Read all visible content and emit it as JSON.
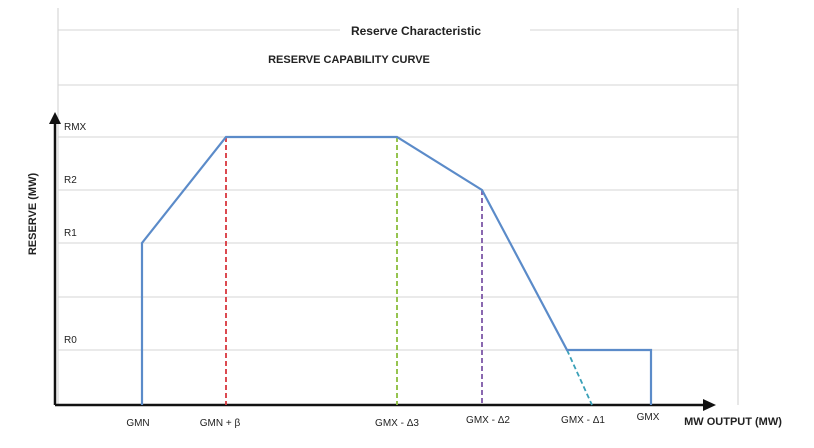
{
  "chart_data": {
    "type": "line",
    "title": "Reserve Characteristic",
    "subtitle": "RESERVE CAPABILITY CURVE",
    "xlabel": "MW OUTPUT (MW)",
    "ylabel": "RESERVE (MW)",
    "x_categories": [
      "GMN",
      "GMN + β",
      "GMX - Δ3",
      "GMX - Δ2",
      "GMX - Δ1",
      "GMX"
    ],
    "y_categories": [
      "R0",
      "R1",
      "R2",
      "RMX"
    ],
    "grid": true,
    "series": [
      {
        "points": [
          {
            "x": "GMN",
            "y": 0
          },
          {
            "x": "GMN",
            "y": "R1"
          },
          {
            "x": "GMN + β",
            "y": "RMX"
          },
          {
            "x": "GMX - Δ3",
            "y": "RMX"
          },
          {
            "x": "GMX - Δ2",
            "y": "R2"
          },
          {
            "x": "between GMX - Δ2 and GMX - Δ1",
            "y": "R0"
          },
          {
            "x": "GMX",
            "y": "R0"
          },
          {
            "x": "GMX",
            "y": 0
          }
        ]
      }
    ],
    "guide_lines": [
      {
        "x": "GMN + β",
        "y": "RMX",
        "style": "dashed",
        "color": "#d9363e"
      },
      {
        "x": "GMX - Δ3",
        "y": "RMX",
        "style": "dashed",
        "color": "#8bbd3c"
      },
      {
        "x": "GMX - Δ2",
        "y": "R2",
        "style": "dashed",
        "color": "#7e57a8"
      },
      {
        "x": "GMX - Δ1",
        "y": "R0",
        "style": "dashed",
        "color": "#3aa0b8"
      },
      {
        "x": "GMX",
        "y": "R0",
        "style": "dashed",
        "color": "#ea8a2e"
      }
    ],
    "colors": {
      "curve": "#5b8bc9",
      "axis": "#111111",
      "grid": "#d4d4d4"
    }
  }
}
